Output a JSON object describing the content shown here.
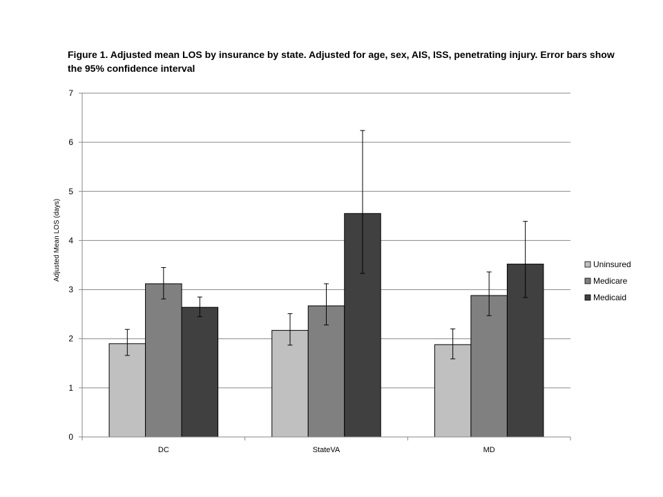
{
  "chart_data": {
    "type": "bar",
    "title_lines": [
      "Figure 1.  Adjusted mean LOS by insurance by state. Adjusted for age, sex, AIS, ISS, penetrating injury. Error bars show",
      "the 95% confidence interval"
    ],
    "ylabel": "Adjusted Mean LOS (days)",
    "xlabel": "",
    "ylim": [
      0,
      7
    ],
    "yticks": [
      "0",
      "1",
      "2",
      "3",
      "4",
      "5",
      "6",
      "7"
    ],
    "grid": true,
    "legend_position": "right",
    "categories": [
      "DC",
      "StateVA",
      "MD"
    ],
    "series": [
      {
        "name": "Uninsured",
        "color": "#c0c0c0",
        "values": [
          1.9,
          2.17,
          1.88
        ],
        "ci_low": [
          1.66,
          1.87,
          1.59
        ],
        "ci_high": [
          2.19,
          2.51,
          2.2
        ]
      },
      {
        "name": "Medicare",
        "color": "#808080",
        "values": [
          3.12,
          2.67,
          2.88
        ],
        "ci_low": [
          2.81,
          2.28,
          2.47
        ],
        "ci_high": [
          3.45,
          3.12,
          3.36
        ]
      },
      {
        "name": "Medicaid",
        "color": "#404040",
        "values": [
          2.64,
          4.55,
          3.52
        ],
        "ci_low": [
          2.45,
          3.33,
          2.84
        ],
        "ci_high": [
          2.85,
          6.24,
          4.39
        ]
      }
    ]
  }
}
